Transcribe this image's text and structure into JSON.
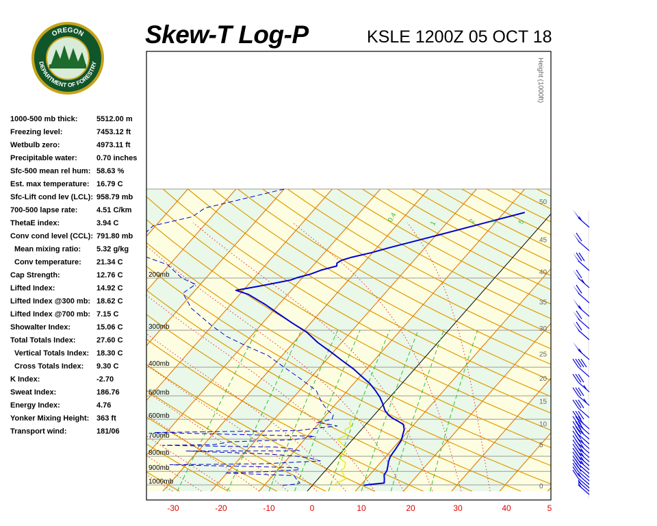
{
  "header": {
    "title": "Skew-T Log-P",
    "station_time": "KSLE 1200Z 05 OCT 18",
    "logo_text": "OREGON DEPARTMENT OF FORESTRY"
  },
  "stats": [
    {
      "label": "1000-500 mb thick:",
      "value": "5512.00 m"
    },
    {
      "label": "Freezing level:",
      "value": "7453.12 ft"
    },
    {
      "label": "Wetbulb zero:",
      "value": "4973.11 ft"
    },
    {
      "label": "Precipitable water:",
      "value": "0.70 inches"
    },
    {
      "label": "Sfc-500 mean rel hum:",
      "value": "58.63 %"
    },
    {
      "label": "Est. max temperature:",
      "value": "16.79 C"
    },
    {
      "label": "Sfc-Lift cond lev (LCL):",
      "value": "958.79 mb"
    },
    {
      "label": "700-500 lapse rate:",
      "value": "4.51 C/km"
    },
    {
      "label": "ThetaE index:",
      "value": "3.94 C"
    },
    {
      "label": "Conv cond level (CCL):",
      "value": "791.80 mb"
    },
    {
      "label": "Mean mixing ratio:",
      "value": "5.32 g/kg",
      "indent": true
    },
    {
      "label": "Conv temperature:",
      "value": "21.34 C",
      "indent": true
    },
    {
      "label": "Cap Strength:",
      "value": "12.76 C"
    },
    {
      "label": "Lifted Index:",
      "value": "14.92 C"
    },
    {
      "label": "Lifted Index @300 mb:",
      "value": "18.62 C"
    },
    {
      "label": "Lifted Index @700 mb:",
      "value": "7.15 C"
    },
    {
      "label": "Showalter Index:",
      "value": "15.06 C"
    },
    {
      "label": "Total Totals Index:",
      "value": "27.60 C"
    },
    {
      "label": "Vertical Totals Index:",
      "value": "18.30 C",
      "indent": true
    },
    {
      "label": "Cross Totals Index:",
      "value": "9.30 C",
      "indent": true
    },
    {
      "label": "K Index:",
      "value": "-2.70"
    },
    {
      "label": "Sweat Index:",
      "value": "186.76"
    },
    {
      "label": "Energy Index:",
      "value": "4.76"
    },
    {
      "label": "Yonker Mixing Height:",
      "value": "363 ft"
    },
    {
      "label": "Transport wind:",
      "value": "181/06"
    }
  ],
  "chart_data": {
    "type": "line",
    "title": "Skew-T Log-P",
    "xlabel": "",
    "ylabel": "",
    "x_ticks": [
      "-30",
      "-20",
      "-10",
      "0",
      "10",
      "20",
      "30",
      "40",
      "5"
    ],
    "temperature_range_c": [
      -35,
      50
    ],
    "pressure_range_mb": [
      100,
      1050
    ],
    "pressure_levels": [
      {
        "p": 200,
        "label": "200mb"
      },
      {
        "p": 300,
        "label": "300mb"
      },
      {
        "p": 400,
        "label": "400mb"
      },
      {
        "p": 500,
        "label": "500mb"
      },
      {
        "p": 600,
        "label": "600mb"
      },
      {
        "p": 700,
        "label": "700mb"
      },
      {
        "p": 800,
        "label": "800mb"
      },
      {
        "p": 900,
        "label": "900mb"
      },
      {
        "p": 1000,
        "label": "1000mb"
      }
    ],
    "height_axis_title": "Height (1000ft)",
    "height_ticks": [
      {
        "p": 110,
        "label": "50"
      },
      {
        "p": 148,
        "label": "45"
      },
      {
        "p": 190,
        "label": "40"
      },
      {
        "p": 240,
        "label": "35"
      },
      {
        "p": 295,
        "label": "30"
      },
      {
        "p": 360,
        "label": "25"
      },
      {
        "p": 435,
        "label": "20"
      },
      {
        "p": 520,
        "label": "15"
      },
      {
        "p": 620,
        "label": "10"
      },
      {
        "p": 730,
        "label": "5"
      },
      {
        "p": 1005,
        "label": "0"
      }
    ],
    "mixing_ratio_labels": [
      "0.4",
      "1",
      "2",
      "3",
      "5"
    ],
    "series": [
      {
        "name": "Temperature",
        "color": "#0000cc",
        "style": "solid",
        "points": [
          [
            10.7,
            1003
          ],
          [
            12.0,
            996
          ],
          [
            14.5,
            985
          ],
          [
            13.8,
            955
          ],
          [
            13.0,
            925
          ],
          [
            12.8,
            895
          ],
          [
            12.2,
            865
          ],
          [
            11.5,
            835
          ],
          [
            11.0,
            805
          ],
          [
            10.8,
            780
          ],
          [
            10.7,
            760
          ],
          [
            10.5,
            735
          ],
          [
            10.3,
            710
          ],
          [
            10.0,
            695
          ],
          [
            9.5,
            675
          ],
          [
            8.9,
            650
          ],
          [
            7.8,
            625
          ],
          [
            6.2,
            610
          ],
          [
            4.4,
            595
          ],
          [
            2.9,
            580
          ],
          [
            1.4,
            560
          ],
          [
            -0.4,
            530
          ],
          [
            -2.1,
            505
          ],
          [
            -4.2,
            480
          ],
          [
            -6.6,
            455
          ],
          [
            -9.6,
            430
          ],
          [
            -12.8,
            405
          ],
          [
            -16.6,
            380
          ],
          [
            -20.6,
            355
          ],
          [
            -25.0,
            330
          ],
          [
            -29.1,
            305
          ],
          [
            -34.0,
            283
          ],
          [
            -38.6,
            263
          ],
          [
            -43.0,
            245
          ],
          [
            -48.2,
            227
          ],
          [
            -51.5,
            220
          ],
          [
            -47.5,
            213
          ],
          [
            -44.2,
            207
          ],
          [
            -42.0,
            203
          ],
          [
            -41.0,
            199
          ],
          [
            -39.0,
            194
          ],
          [
            -37.5,
            188
          ],
          [
            -35.0,
            182
          ],
          [
            -35.5,
            178
          ],
          [
            -35.0,
            174
          ],
          [
            -33.5,
            170
          ],
          [
            -30.2,
            164
          ],
          [
            -27.5,
            158
          ],
          [
            -19.5,
            143
          ],
          [
            -12.0,
            130
          ],
          [
            -5.7,
            120
          ]
        ]
      },
      {
        "name": "Dewpoint",
        "color": "#0000cc",
        "style": "dashed",
        "points": [
          [
            -6.2,
            1003
          ],
          [
            -3.5,
            993
          ],
          [
            -3.0,
            985
          ],
          [
            -4.5,
            955
          ],
          [
            -5.6,
            930
          ],
          [
            -20.5,
            911
          ],
          [
            -11.3,
            901
          ],
          [
            -5.5,
            888
          ],
          [
            -6.4,
            874
          ],
          [
            -33.4,
            855
          ],
          [
            -13.9,
            848
          ],
          [
            -2.8,
            830
          ],
          [
            -5.5,
            812
          ],
          [
            -8.5,
            800
          ],
          [
            -15.5,
            785
          ],
          [
            -32.5,
            768
          ],
          [
            -9.0,
            767
          ],
          [
            -11.0,
            755
          ],
          [
            -14.5,
            745
          ],
          [
            -38.5,
            735
          ],
          [
            -28.0,
            731
          ],
          [
            -25.0,
            715
          ],
          [
            -12.2,
            703
          ],
          [
            -8.5,
            685
          ],
          [
            -42.5,
            665
          ],
          [
            -13.0,
            655
          ],
          [
            -5.7,
            632
          ],
          [
            -7.4,
            625
          ],
          [
            -10.5,
            615
          ],
          [
            -8.0,
            600
          ],
          [
            -8.5,
            580
          ],
          [
            -10.5,
            560
          ],
          [
            -13.3,
            525
          ],
          [
            -16.5,
            480
          ],
          [
            -23.0,
            430
          ],
          [
            -27.5,
            400
          ],
          [
            -33.0,
            365
          ],
          [
            -39.0,
            340
          ],
          [
            -45.0,
            315
          ],
          [
            -50.0,
            290
          ],
          [
            -57.5,
            253
          ],
          [
            -62.0,
            225
          ],
          [
            -61.0,
            210
          ],
          [
            -65.0,
            200
          ],
          [
            -70.5,
            180
          ],
          [
            -79.0,
            165
          ],
          [
            -81.0,
            146
          ],
          [
            -80.5,
            133
          ],
          [
            -74.0,
            124
          ],
          [
            -73.0,
            116
          ],
          [
            -60.0,
            100
          ]
        ]
      },
      {
        "name": "Wetbulb",
        "color": "#e6e600",
        "style": "solid",
        "points": [
          [
            4.5,
            1000
          ],
          [
            4.7,
            985
          ],
          [
            5.7,
            955
          ],
          [
            4.6,
            925
          ],
          [
            3.2,
            890
          ],
          [
            3.5,
            875
          ],
          [
            2.7,
            840
          ],
          [
            0.8,
            815
          ],
          [
            0.3,
            795
          ],
          [
            0.7,
            770
          ],
          [
            0.0,
            750
          ],
          [
            -0.8,
            735
          ],
          [
            -1.9,
            720
          ],
          [
            -3.3,
            700
          ],
          [
            -2.0,
            680
          ],
          [
            -2.8,
            665
          ],
          [
            -3.4,
            650
          ],
          [
            -2.7,
            635
          ],
          [
            -3.6,
            620
          ],
          [
            -3.8,
            602
          ]
        ]
      }
    ],
    "wind_barbs": [
      {
        "p": 1000,
        "kt": 5
      },
      {
        "p": 975,
        "kt": 5
      },
      {
        "p": 950,
        "kt": 10
      },
      {
        "p": 925,
        "kt": 15
      },
      {
        "p": 900,
        "kt": 20
      },
      {
        "p": 875,
        "kt": 20
      },
      {
        "p": 850,
        "kt": 20
      },
      {
        "p": 825,
        "kt": 25
      },
      {
        "p": 800,
        "kt": 25
      },
      {
        "p": 775,
        "kt": 25
      },
      {
        "p": 750,
        "kt": 25
      },
      {
        "p": 725,
        "kt": 25
      },
      {
        "p": 700,
        "kt": 25
      },
      {
        "p": 675,
        "kt": 30
      },
      {
        "p": 650,
        "kt": 30
      },
      {
        "p": 625,
        "kt": 30
      },
      {
        "p": 600,
        "kt": 30
      },
      {
        "p": 550,
        "kt": 30
      },
      {
        "p": 500,
        "kt": 35
      },
      {
        "p": 450,
        "kt": 35
      },
      {
        "p": 400,
        "kt": 40
      },
      {
        "p": 350,
        "kt": 55
      },
      {
        "p": 300,
        "kt": 60
      },
      {
        "p": 275,
        "kt": 60
      },
      {
        "p": 250,
        "kt": 55
      },
      {
        "p": 225,
        "kt": 60
      },
      {
        "p": 200,
        "kt": 65
      },
      {
        "p": 175,
        "kt": 70
      },
      {
        "p": 150,
        "kt": 60
      },
      {
        "p": 125,
        "kt": 55
      }
    ],
    "colors": {
      "temperature": "#0000cc",
      "dewpoint": "#0000cc",
      "wetbulb": "#e6e600",
      "isotherm": "#e07800",
      "dry_adiabat": "#e09a00",
      "moist_adiabat": "#e03030",
      "mixing_ratio": "#33bb33",
      "zero_isotherm": "#000000",
      "band_green": "#e9f8e9",
      "band_yellow": "#fdfde1",
      "wind_barb": "#0000dd",
      "tick_label": "#dd0000"
    }
  }
}
